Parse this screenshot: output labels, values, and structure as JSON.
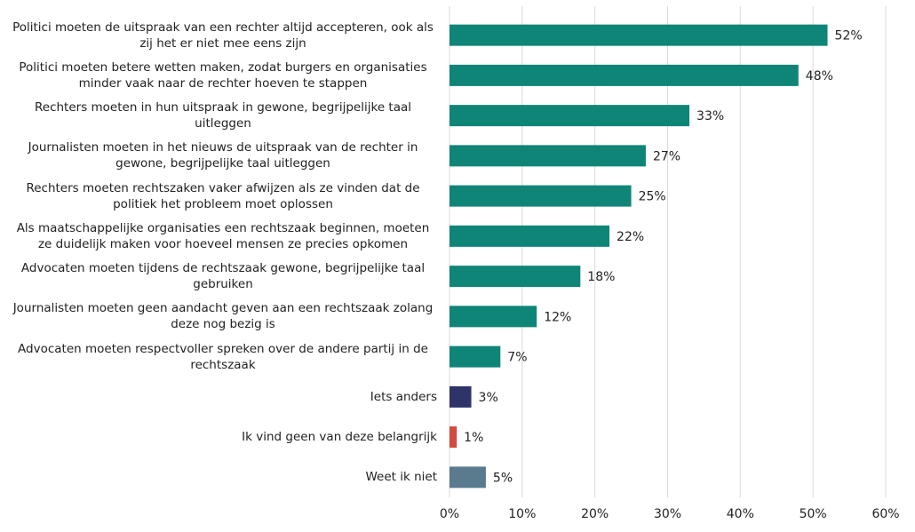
{
  "chart_data": {
    "type": "bar",
    "orientation": "horizontal",
    "categories": [
      "Politici moeten de uitspraak van een rechter altijd accepteren, ook als zij het er niet mee eens zijn",
      "Politici moeten betere wetten maken, zodat burgers en organisaties minder vaak naar de rechter hoeven te stappen",
      "Rechters moeten in hun uitspraak in gewone, begrijpelijke taal uitleggen",
      "Journalisten moeten in het nieuws de uitspraak van de rechter in gewone, begrijpelijke taal uitleggen",
      "Rechters moeten rechtszaken vaker afwijzen als ze vinden dat de politiek het probleem moet oplossen",
      "Als maatschappelijke organisaties een rechtszaak beginnen, moeten ze duidelijk maken voor hoeveel mensen ze precies opkomen",
      "Advocaten moeten tijdens de rechtszaak gewone, begrijpelijke taal gebruiken",
      "Journalisten moeten geen aandacht geven aan een rechtszaak zolang deze nog bezig is",
      "Advocaten moeten respectvoller spreken over de andere partij in de rechtszaak",
      "Iets anders",
      "Ik vind geen van deze belangrijk",
      "Weet ik niet"
    ],
    "values": [
      52,
      48,
      33,
      27,
      25,
      22,
      18,
      12,
      7,
      3,
      1,
      5
    ],
    "value_labels": [
      "52%",
      "48%",
      "33%",
      "27%",
      "25%",
      "22%",
      "18%",
      "12%",
      "7%",
      "3%",
      "1%",
      "5%"
    ],
    "colors": [
      "#0f8577",
      "#0f8577",
      "#0f8577",
      "#0f8577",
      "#0f8577",
      "#0f8577",
      "#0f8577",
      "#0f8577",
      "#0f8577",
      "#2e3467",
      "#d24b40",
      "#5a7a8e"
    ],
    "xlim": [
      0,
      60
    ],
    "xticks": [
      {
        "value": 0,
        "label": "0%"
      },
      {
        "value": 10,
        "label": "10%"
      },
      {
        "value": 20,
        "label": "20%"
      },
      {
        "value": 30,
        "label": "30%"
      },
      {
        "value": 40,
        "label": "40%"
      },
      {
        "value": 50,
        "label": "50%"
      },
      {
        "value": 60,
        "label": "60%"
      }
    ],
    "grid": true
  }
}
